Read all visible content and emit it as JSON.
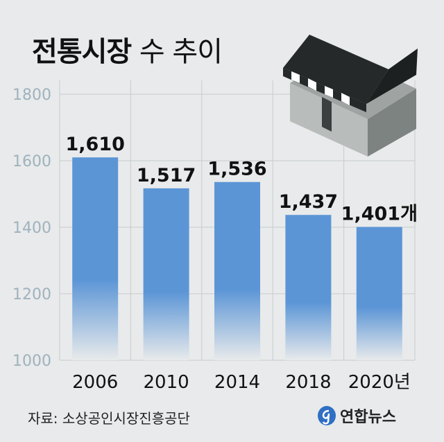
{
  "title_bold": "전통시장",
  "title_light": "수 추이",
  "source": "자료: 소상공인시장진흥공단",
  "logo_text": "연합뉴스",
  "colors": {
    "background": "#e8eaeb",
    "bar": "#5b95d6",
    "grid": "#c9ccce",
    "tick_text": "#9fb2bd",
    "label_text": "#111111",
    "logo_accent": "#2f6fc4"
  },
  "chart_data": {
    "type": "bar",
    "title": "전통시장 수 추이",
    "categories": [
      "2006",
      "2010",
      "2014",
      "2018",
      "2020"
    ],
    "category_labels": [
      "2006",
      "2010",
      "2014",
      "2018",
      "2020년"
    ],
    "values": [
      1610,
      1517,
      1536,
      1437,
      1401
    ],
    "value_labels": [
      "1,610",
      "1,517",
      "1,536",
      "1,437",
      "1,401개"
    ],
    "ylim": [
      1000,
      1800
    ],
    "yticks": [
      1000,
      1200,
      1400,
      1600,
      1800
    ],
    "grid": true,
    "legend": "none"
  }
}
